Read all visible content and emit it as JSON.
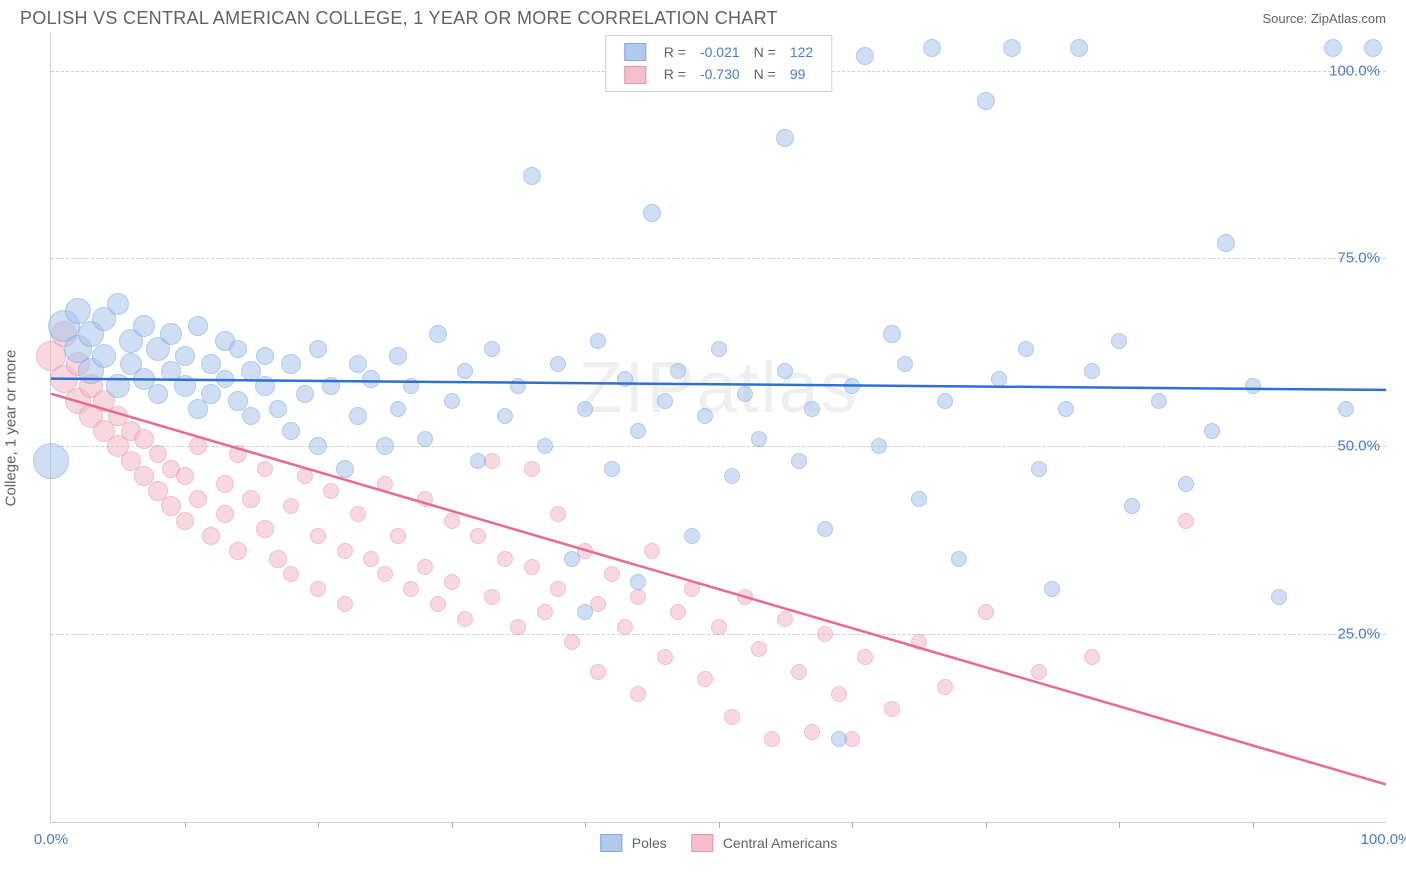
{
  "header": {
    "title": "POLISH VS CENTRAL AMERICAN COLLEGE, 1 YEAR OR MORE CORRELATION CHART",
    "source_prefix": "Source: ",
    "source_name": "ZipAtlas.com"
  },
  "chart": {
    "type": "scatter",
    "ylabel": "College, 1 year or more",
    "watermark": "ZIPatlas",
    "xlim": [
      0,
      100
    ],
    "ylim": [
      0,
      105
    ],
    "xtick_labels": {
      "0": "0.0%",
      "100": "100.0%"
    },
    "xtick_marks": [
      10,
      20,
      30,
      40,
      50,
      60,
      70,
      80,
      90
    ],
    "ytick_labels": {
      "25": "25.0%",
      "50": "50.0%",
      "75": "75.0%",
      "100": "100.0%"
    },
    "ygridlines": [
      25,
      50,
      75,
      100
    ],
    "background_color": "#ffffff",
    "grid_color": "#d0d0d0",
    "series": {
      "poles": {
        "label": "Poles",
        "R": "-0.021",
        "N": "122",
        "fill_color": "#a9c4eb",
        "stroke_color": "#6f9fe0",
        "fill_opacity": 0.55,
        "marker_radius_min": 8,
        "marker_radius_max": 18,
        "trend": {
          "y_at_x0": 59.0,
          "y_at_x100": 57.5,
          "line_color": "#2f6fd6",
          "line_width": 2.5
        },
        "points": [
          {
            "x": 0,
            "y": 48,
            "r": 18
          },
          {
            "x": 1,
            "y": 66,
            "r": 16
          },
          {
            "x": 2,
            "y": 63,
            "r": 14
          },
          {
            "x": 2,
            "y": 68,
            "r": 13
          },
          {
            "x": 3,
            "y": 60,
            "r": 13
          },
          {
            "x": 3,
            "y": 65,
            "r": 13
          },
          {
            "x": 4,
            "y": 62,
            "r": 12
          },
          {
            "x": 4,
            "y": 67,
            "r": 12
          },
          {
            "x": 5,
            "y": 58,
            "r": 12
          },
          {
            "x": 5,
            "y": 69,
            "r": 11
          },
          {
            "x": 6,
            "y": 64,
            "r": 12
          },
          {
            "x": 6,
            "y": 61,
            "r": 11
          },
          {
            "x": 7,
            "y": 66,
            "r": 11
          },
          {
            "x": 7,
            "y": 59,
            "r": 11
          },
          {
            "x": 8,
            "y": 63,
            "r": 12
          },
          {
            "x": 8,
            "y": 57,
            "r": 10
          },
          {
            "x": 9,
            "y": 65,
            "r": 11
          },
          {
            "x": 9,
            "y": 60,
            "r": 10
          },
          {
            "x": 10,
            "y": 58,
            "r": 11
          },
          {
            "x": 10,
            "y": 62,
            "r": 10
          },
          {
            "x": 11,
            "y": 66,
            "r": 10
          },
          {
            "x": 11,
            "y": 55,
            "r": 10
          },
          {
            "x": 12,
            "y": 61,
            "r": 10
          },
          {
            "x": 12,
            "y": 57,
            "r": 10
          },
          {
            "x": 13,
            "y": 64,
            "r": 10
          },
          {
            "x": 13,
            "y": 59,
            "r": 9
          },
          {
            "x": 14,
            "y": 56,
            "r": 10
          },
          {
            "x": 14,
            "y": 63,
            "r": 9
          },
          {
            "x": 15,
            "y": 60,
            "r": 10
          },
          {
            "x": 15,
            "y": 54,
            "r": 9
          },
          {
            "x": 16,
            "y": 58,
            "r": 10
          },
          {
            "x": 16,
            "y": 62,
            "r": 9
          },
          {
            "x": 17,
            "y": 55,
            "r": 9
          },
          {
            "x": 18,
            "y": 61,
            "r": 10
          },
          {
            "x": 18,
            "y": 52,
            "r": 9
          },
          {
            "x": 19,
            "y": 57,
            "r": 9
          },
          {
            "x": 20,
            "y": 63,
            "r": 9
          },
          {
            "x": 20,
            "y": 50,
            "r": 9
          },
          {
            "x": 21,
            "y": 58,
            "r": 9
          },
          {
            "x": 22,
            "y": 47,
            "r": 9
          },
          {
            "x": 23,
            "y": 61,
            "r": 9
          },
          {
            "x": 23,
            "y": 54,
            "r": 9
          },
          {
            "x": 24,
            "y": 59,
            "r": 9
          },
          {
            "x": 25,
            "y": 50,
            "r": 9
          },
          {
            "x": 26,
            "y": 62,
            "r": 9
          },
          {
            "x": 26,
            "y": 55,
            "r": 8
          },
          {
            "x": 27,
            "y": 58,
            "r": 8
          },
          {
            "x": 28,
            "y": 51,
            "r": 8
          },
          {
            "x": 29,
            "y": 65,
            "r": 9
          },
          {
            "x": 30,
            "y": 56,
            "r": 8
          },
          {
            "x": 31,
            "y": 60,
            "r": 8
          },
          {
            "x": 32,
            "y": 48,
            "r": 8
          },
          {
            "x": 33,
            "y": 63,
            "r": 8
          },
          {
            "x": 34,
            "y": 54,
            "r": 8
          },
          {
            "x": 35,
            "y": 58,
            "r": 8
          },
          {
            "x": 36,
            "y": 86,
            "r": 9
          },
          {
            "x": 37,
            "y": 50,
            "r": 8
          },
          {
            "x": 38,
            "y": 61,
            "r": 8
          },
          {
            "x": 39,
            "y": 35,
            "r": 8
          },
          {
            "x": 40,
            "y": 55,
            "r": 8
          },
          {
            "x": 40,
            "y": 28,
            "r": 8
          },
          {
            "x": 41,
            "y": 64,
            "r": 8
          },
          {
            "x": 42,
            "y": 47,
            "r": 8
          },
          {
            "x": 43,
            "y": 59,
            "r": 8
          },
          {
            "x": 44,
            "y": 52,
            "r": 8
          },
          {
            "x": 44,
            "y": 32,
            "r": 8
          },
          {
            "x": 45,
            "y": 81,
            "r": 9
          },
          {
            "x": 46,
            "y": 56,
            "r": 8
          },
          {
            "x": 47,
            "y": 60,
            "r": 8
          },
          {
            "x": 48,
            "y": 38,
            "r": 8
          },
          {
            "x": 49,
            "y": 54,
            "r": 8
          },
          {
            "x": 50,
            "y": 63,
            "r": 8
          },
          {
            "x": 51,
            "y": 46,
            "r": 8
          },
          {
            "x": 52,
            "y": 57,
            "r": 8
          },
          {
            "x": 53,
            "y": 51,
            "r": 8
          },
          {
            "x": 54,
            "y": 102,
            "r": 9
          },
          {
            "x": 55,
            "y": 91,
            "r": 9
          },
          {
            "x": 55,
            "y": 60,
            "r": 8
          },
          {
            "x": 56,
            "y": 48,
            "r": 8
          },
          {
            "x": 57,
            "y": 55,
            "r": 8
          },
          {
            "x": 58,
            "y": 39,
            "r": 8
          },
          {
            "x": 59,
            "y": 11,
            "r": 8
          },
          {
            "x": 60,
            "y": 58,
            "r": 8
          },
          {
            "x": 61,
            "y": 102,
            "r": 9
          },
          {
            "x": 62,
            "y": 50,
            "r": 8
          },
          {
            "x": 63,
            "y": 65,
            "r": 9
          },
          {
            "x": 64,
            "y": 61,
            "r": 8
          },
          {
            "x": 65,
            "y": 43,
            "r": 8
          },
          {
            "x": 66,
            "y": 103,
            "r": 9
          },
          {
            "x": 67,
            "y": 56,
            "r": 8
          },
          {
            "x": 68,
            "y": 35,
            "r": 8
          },
          {
            "x": 70,
            "y": 96,
            "r": 9
          },
          {
            "x": 71,
            "y": 59,
            "r": 8
          },
          {
            "x": 72,
            "y": 103,
            "r": 9
          },
          {
            "x": 73,
            "y": 63,
            "r": 8
          },
          {
            "x": 74,
            "y": 47,
            "r": 8
          },
          {
            "x": 75,
            "y": 31,
            "r": 8
          },
          {
            "x": 76,
            "y": 55,
            "r": 8
          },
          {
            "x": 77,
            "y": 103,
            "r": 9
          },
          {
            "x": 78,
            "y": 60,
            "r": 8
          },
          {
            "x": 80,
            "y": 64,
            "r": 8
          },
          {
            "x": 81,
            "y": 42,
            "r": 8
          },
          {
            "x": 83,
            "y": 56,
            "r": 8
          },
          {
            "x": 85,
            "y": 45,
            "r": 8
          },
          {
            "x": 87,
            "y": 52,
            "r": 8
          },
          {
            "x": 88,
            "y": 77,
            "r": 9
          },
          {
            "x": 90,
            "y": 58,
            "r": 8
          },
          {
            "x": 92,
            "y": 30,
            "r": 8
          },
          {
            "x": 96,
            "y": 103,
            "r": 9
          },
          {
            "x": 97,
            "y": 55,
            "r": 8
          },
          {
            "x": 99,
            "y": 103,
            "r": 9
          }
        ]
      },
      "central": {
        "label": "Central Americans",
        "R": "-0.730",
        "N": "99",
        "fill_color": "#f4b9c7",
        "stroke_color": "#e88aa2",
        "fill_opacity": 0.55,
        "marker_radius_min": 8,
        "marker_radius_max": 16,
        "trend": {
          "y_at_x0": 57.0,
          "y_at_x100": 5.0,
          "line_color": "#e86b8e",
          "line_width": 2.5
        },
        "points": [
          {
            "x": 0,
            "y": 62,
            "r": 15
          },
          {
            "x": 1,
            "y": 59,
            "r": 14
          },
          {
            "x": 1,
            "y": 65,
            "r": 13
          },
          {
            "x": 2,
            "y": 56,
            "r": 13
          },
          {
            "x": 2,
            "y": 61,
            "r": 12
          },
          {
            "x": 3,
            "y": 54,
            "r": 12
          },
          {
            "x": 3,
            "y": 58,
            "r": 12
          },
          {
            "x": 4,
            "y": 52,
            "r": 11
          },
          {
            "x": 4,
            "y": 56,
            "r": 11
          },
          {
            "x": 5,
            "y": 50,
            "r": 11
          },
          {
            "x": 5,
            "y": 54,
            "r": 10
          },
          {
            "x": 6,
            "y": 48,
            "r": 10
          },
          {
            "x": 6,
            "y": 52,
            "r": 10
          },
          {
            "x": 7,
            "y": 46,
            "r": 10
          },
          {
            "x": 7,
            "y": 51,
            "r": 10
          },
          {
            "x": 8,
            "y": 44,
            "r": 10
          },
          {
            "x": 8,
            "y": 49,
            "r": 9
          },
          {
            "x": 9,
            "y": 42,
            "r": 10
          },
          {
            "x": 9,
            "y": 47,
            "r": 9
          },
          {
            "x": 10,
            "y": 40,
            "r": 9
          },
          {
            "x": 10,
            "y": 46,
            "r": 9
          },
          {
            "x": 11,
            "y": 50,
            "r": 9
          },
          {
            "x": 11,
            "y": 43,
            "r": 9
          },
          {
            "x": 12,
            "y": 38,
            "r": 9
          },
          {
            "x": 13,
            "y": 45,
            "r": 9
          },
          {
            "x": 13,
            "y": 41,
            "r": 9
          },
          {
            "x": 14,
            "y": 49,
            "r": 9
          },
          {
            "x": 14,
            "y": 36,
            "r": 9
          },
          {
            "x": 15,
            "y": 43,
            "r": 9
          },
          {
            "x": 16,
            "y": 39,
            "r": 9
          },
          {
            "x": 16,
            "y": 47,
            "r": 8
          },
          {
            "x": 17,
            "y": 35,
            "r": 9
          },
          {
            "x": 18,
            "y": 42,
            "r": 8
          },
          {
            "x": 18,
            "y": 33,
            "r": 8
          },
          {
            "x": 19,
            "y": 46,
            "r": 8
          },
          {
            "x": 20,
            "y": 38,
            "r": 8
          },
          {
            "x": 20,
            "y": 31,
            "r": 8
          },
          {
            "x": 21,
            "y": 44,
            "r": 8
          },
          {
            "x": 22,
            "y": 36,
            "r": 8
          },
          {
            "x": 22,
            "y": 29,
            "r": 8
          },
          {
            "x": 23,
            "y": 41,
            "r": 8
          },
          {
            "x": 24,
            "y": 35,
            "r": 8
          },
          {
            "x": 25,
            "y": 33,
            "r": 8
          },
          {
            "x": 25,
            "y": 45,
            "r": 8
          },
          {
            "x": 26,
            "y": 38,
            "r": 8
          },
          {
            "x": 27,
            "y": 31,
            "r": 8
          },
          {
            "x": 28,
            "y": 43,
            "r": 8
          },
          {
            "x": 28,
            "y": 34,
            "r": 8
          },
          {
            "x": 29,
            "y": 29,
            "r": 8
          },
          {
            "x": 30,
            "y": 40,
            "r": 8
          },
          {
            "x": 30,
            "y": 32,
            "r": 8
          },
          {
            "x": 31,
            "y": 27,
            "r": 8
          },
          {
            "x": 32,
            "y": 38,
            "r": 8
          },
          {
            "x": 33,
            "y": 30,
            "r": 8
          },
          {
            "x": 33,
            "y": 48,
            "r": 8
          },
          {
            "x": 34,
            "y": 35,
            "r": 8
          },
          {
            "x": 35,
            "y": 26,
            "r": 8
          },
          {
            "x": 36,
            "y": 34,
            "r": 8
          },
          {
            "x": 36,
            "y": 47,
            "r": 8
          },
          {
            "x": 37,
            "y": 28,
            "r": 8
          },
          {
            "x": 38,
            "y": 41,
            "r": 8
          },
          {
            "x": 38,
            "y": 31,
            "r": 8
          },
          {
            "x": 39,
            "y": 24,
            "r": 8
          },
          {
            "x": 40,
            "y": 36,
            "r": 8
          },
          {
            "x": 41,
            "y": 29,
            "r": 8
          },
          {
            "x": 41,
            "y": 20,
            "r": 8
          },
          {
            "x": 42,
            "y": 33,
            "r": 8
          },
          {
            "x": 43,
            "y": 26,
            "r": 8
          },
          {
            "x": 44,
            "y": 30,
            "r": 8
          },
          {
            "x": 44,
            "y": 17,
            "r": 8
          },
          {
            "x": 45,
            "y": 36,
            "r": 8
          },
          {
            "x": 46,
            "y": 22,
            "r": 8
          },
          {
            "x": 47,
            "y": 28,
            "r": 8
          },
          {
            "x": 48,
            "y": 31,
            "r": 8
          },
          {
            "x": 49,
            "y": 19,
            "r": 8
          },
          {
            "x": 50,
            "y": 26,
            "r": 8
          },
          {
            "x": 51,
            "y": 14,
            "r": 8
          },
          {
            "x": 52,
            "y": 30,
            "r": 8
          },
          {
            "x": 53,
            "y": 23,
            "r": 8
          },
          {
            "x": 54,
            "y": 11,
            "r": 8
          },
          {
            "x": 55,
            "y": 27,
            "r": 8
          },
          {
            "x": 56,
            "y": 20,
            "r": 8
          },
          {
            "x": 57,
            "y": 12,
            "r": 8
          },
          {
            "x": 58,
            "y": 25,
            "r": 8
          },
          {
            "x": 59,
            "y": 17,
            "r": 8
          },
          {
            "x": 60,
            "y": 11,
            "r": 8
          },
          {
            "x": 61,
            "y": 22,
            "r": 8
          },
          {
            "x": 63,
            "y": 15,
            "r": 8
          },
          {
            "x": 65,
            "y": 24,
            "r": 8
          },
          {
            "x": 67,
            "y": 18,
            "r": 8
          },
          {
            "x": 70,
            "y": 28,
            "r": 8
          },
          {
            "x": 74,
            "y": 20,
            "r": 8
          },
          {
            "x": 78,
            "y": 22,
            "r": 8
          },
          {
            "x": 85,
            "y": 40,
            "r": 8
          }
        ]
      }
    }
  },
  "legend_top_labels": {
    "R": "R =",
    "N": "N ="
  }
}
